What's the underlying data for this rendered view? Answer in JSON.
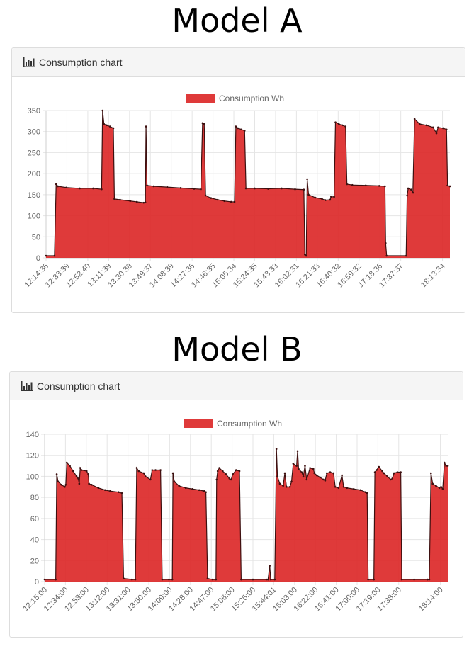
{
  "titles": {
    "a": "Model A",
    "b": "Model B"
  },
  "colors": {
    "fill": "#db2525",
    "fill_opacity": 0.9,
    "line": "#3d1010",
    "grid": "#e5e5e5",
    "panel_bg": "#f5f5f5"
  },
  "chart_data": [
    {
      "type": "area",
      "panel_title": "Consumption chart",
      "legend": "Consumption Wh",
      "legend_position": "top",
      "grid": true,
      "ylim": [
        0,
        350
      ],
      "yticks": [
        0,
        50,
        100,
        150,
        200,
        250,
        300,
        350
      ],
      "x_labels": [
        "12:14:36",
        "12:33:39",
        "12:52:40",
        "13:11:39",
        "13:30:38",
        "13:49:37",
        "14:08:39",
        "14:27:36",
        "14:46:35",
        "15:05:34",
        "15:24:35",
        "15:43:33",
        "16:02:31",
        "16:21:33",
        "16:40:32",
        "16:59:32",
        "17:18:36",
        "17:37:37",
        "18:13:34"
      ],
      "x_range": [
        0,
        120
      ],
      "label_x": [
        0,
        6.2,
        12.4,
        18.6,
        24.8,
        31,
        37.2,
        43.4,
        49.6,
        55.8,
        62,
        68.2,
        74.4,
        80.6,
        86.8,
        93,
        99.2,
        105.4,
        117.8
      ],
      "points": [
        [
          0,
          5
        ],
        [
          2.5,
          5
        ],
        [
          3,
          175
        ],
        [
          3.5,
          170
        ],
        [
          6,
          167
        ],
        [
          10,
          165
        ],
        [
          14,
          165
        ],
        [
          16.5,
          163
        ],
        [
          16.8,
          350
        ],
        [
          17.2,
          318
        ],
        [
          18,
          315
        ],
        [
          19,
          312
        ],
        [
          20,
          308
        ],
        [
          20.3,
          140
        ],
        [
          22,
          138
        ],
        [
          25,
          135
        ],
        [
          27,
          133
        ],
        [
          29,
          131
        ],
        [
          29.5,
          132
        ],
        [
          29.7,
          312
        ],
        [
          30,
          172
        ],
        [
          32,
          170
        ],
        [
          36,
          168
        ],
        [
          40,
          166
        ],
        [
          44,
          164
        ],
        [
          46,
          163
        ],
        [
          46.5,
          320
        ],
        [
          47,
          318
        ],
        [
          47.4,
          148
        ],
        [
          49,
          142
        ],
        [
          51,
          138
        ],
        [
          53,
          135
        ],
        [
          55,
          133
        ],
        [
          56,
          133
        ],
        [
          56.4,
          312
        ],
        [
          57,
          308
        ],
        [
          58,
          305
        ],
        [
          59,
          302
        ],
        [
          59.4,
          165
        ],
        [
          62,
          165
        ],
        [
          66,
          164
        ],
        [
          70,
          165
        ],
        [
          74,
          163
        ],
        [
          76.6,
          162
        ],
        [
          76.9,
          8
        ],
        [
          77.3,
          5
        ],
        [
          77.6,
          187
        ],
        [
          78,
          150
        ],
        [
          80,
          143
        ],
        [
          82,
          140
        ],
        [
          83,
          137
        ],
        [
          84.4,
          138
        ],
        [
          84.7,
          145
        ],
        [
          85.6,
          145
        ],
        [
          86,
          322
        ],
        [
          87,
          318
        ],
        [
          88,
          315
        ],
        [
          89,
          312
        ],
        [
          89.4,
          175
        ],
        [
          91,
          173
        ],
        [
          95,
          172
        ],
        [
          99,
          171
        ],
        [
          100.7,
          170
        ],
        [
          100.9,
          35
        ],
        [
          101.2,
          5
        ],
        [
          107,
          5
        ],
        [
          107.3,
          148
        ],
        [
          107.6,
          165
        ],
        [
          108.5,
          162
        ],
        [
          109,
          155
        ],
        [
          109.5,
          330
        ],
        [
          111,
          318
        ],
        [
          113,
          315
        ],
        [
          115,
          310
        ],
        [
          116,
          296
        ],
        [
          116.5,
          310
        ],
        [
          118,
          308
        ],
        [
          119,
          305
        ],
        [
          119.3,
          172
        ],
        [
          120,
          170
        ]
      ]
    },
    {
      "type": "area",
      "panel_title": "Consumption chart",
      "legend": "Consumption Wh",
      "legend_position": "top",
      "grid": true,
      "ylim": [
        0,
        140
      ],
      "yticks": [
        0,
        20,
        40,
        60,
        80,
        100,
        120,
        140
      ],
      "x_labels": [
        "12:15:00",
        "12:34:00",
        "12:53:00",
        "13:12:00",
        "13:31:00",
        "13:50:00",
        "14:09:00",
        "14:28:00",
        "14:47:00",
        "15:06:00",
        "15:25:00",
        "15:44:01",
        "16:03:00",
        "16:22:00",
        "16:41:00",
        "17:00:00",
        "17:19:00",
        "17:38:00",
        "18:14:00"
      ],
      "x_range": [
        0,
        120
      ],
      "label_x": [
        0,
        6.2,
        12.4,
        18.6,
        24.8,
        31,
        37.2,
        43.4,
        49.6,
        55.8,
        62,
        68.2,
        74.4,
        80.6,
        86.8,
        93,
        99.2,
        105.4,
        117.8
      ],
      "points": [
        [
          0,
          2
        ],
        [
          3.3,
          2
        ],
        [
          3.6,
          102
        ],
        [
          4,
          95
        ],
        [
          5,
          92
        ],
        [
          6,
          90
        ],
        [
          6.3,
          92
        ],
        [
          6.6,
          113
        ],
        [
          7.5,
          110
        ],
        [
          8.5,
          105
        ],
        [
          9.5,
          100
        ],
        [
          10,
          98
        ],
        [
          10.3,
          93
        ],
        [
          10.6,
          108
        ],
        [
          11,
          106
        ],
        [
          12.5,
          105
        ],
        [
          13,
          102
        ],
        [
          13.2,
          93
        ],
        [
          14,
          92
        ],
        [
          16,
          89
        ],
        [
          18,
          87
        ],
        [
          19.5,
          86
        ],
        [
          22,
          85
        ],
        [
          23,
          84
        ],
        [
          23.5,
          3
        ],
        [
          26,
          2
        ],
        [
          27,
          2
        ],
        [
          27.4,
          108
        ],
        [
          28,
          105
        ],
        [
          29.5,
          103
        ],
        [
          30,
          100
        ],
        [
          31.5,
          97
        ],
        [
          32,
          106
        ],
        [
          33,
          106
        ],
        [
          34.5,
          106
        ],
        [
          35,
          2
        ],
        [
          37,
          2
        ],
        [
          38,
          2
        ],
        [
          38.2,
          103
        ],
        [
          38.6,
          95
        ],
        [
          40,
          91
        ],
        [
          42,
          89
        ],
        [
          44,
          88
        ],
        [
          46,
          87
        ],
        [
          47.5,
          86
        ],
        [
          48,
          85
        ],
        [
          48.5,
          3
        ],
        [
          50,
          2
        ],
        [
          51,
          2
        ],
        [
          51.2,
          97
        ],
        [
          51.5,
          105
        ],
        [
          52,
          108
        ],
        [
          53,
          105
        ],
        [
          54,
          102
        ],
        [
          55,
          98
        ],
        [
          55.5,
          97
        ],
        [
          56,
          102
        ],
        [
          57,
          106
        ],
        [
          58,
          105
        ],
        [
          58.5,
          2
        ],
        [
          62,
          2
        ],
        [
          66,
          2
        ],
        [
          66.5,
          2
        ],
        [
          67,
          15
        ],
        [
          67.3,
          2
        ],
        [
          68.5,
          2
        ],
        [
          69,
          126
        ],
        [
          69.3,
          100
        ],
        [
          70,
          93
        ],
        [
          71,
          91
        ],
        [
          71.5,
          103
        ],
        [
          72,
          90
        ],
        [
          73,
          90
        ],
        [
          73.5,
          95
        ],
        [
          74,
          112
        ],
        [
          75,
          110
        ],
        [
          75.3,
          124
        ],
        [
          75.6,
          107
        ],
        [
          76.5,
          104
        ],
        [
          77,
          100
        ],
        [
          77.5,
          110
        ],
        [
          78,
          97
        ],
        [
          79,
          108
        ],
        [
          80,
          107
        ],
        [
          80.3,
          103
        ],
        [
          81,
          101
        ],
        [
          82,
          99
        ],
        [
          83,
          97
        ],
        [
          83.5,
          96
        ],
        [
          84,
          103
        ],
        [
          85,
          104
        ],
        [
          86,
          103
        ],
        [
          86.5,
          90
        ],
        [
          87.5,
          89
        ],
        [
          88.5,
          101
        ],
        [
          89,
          90
        ],
        [
          90,
          89
        ],
        [
          92,
          88
        ],
        [
          94,
          87
        ],
        [
          95.5,
          85
        ],
        [
          96,
          84
        ],
        [
          96.3,
          2
        ],
        [
          98,
          2
        ],
        [
          98.3,
          104
        ],
        [
          98.8,
          106
        ],
        [
          99.5,
          109
        ],
        [
          100.5,
          105
        ],
        [
          101,
          103
        ],
        [
          102,
          100
        ],
        [
          103,
          97
        ],
        [
          103.5,
          98
        ],
        [
          104,
          103
        ],
        [
          105,
          104
        ],
        [
          106,
          104
        ],
        [
          106.3,
          2
        ],
        [
          110,
          2
        ],
        [
          114,
          2
        ],
        [
          114.5,
          2
        ],
        [
          115,
          103
        ],
        [
          115.5,
          93
        ],
        [
          116.5,
          91
        ],
        [
          117.5,
          89
        ],
        [
          118,
          90
        ],
        [
          118.5,
          88
        ],
        [
          119,
          113
        ],
        [
          119.5,
          110
        ],
        [
          120,
          110
        ]
      ]
    }
  ]
}
